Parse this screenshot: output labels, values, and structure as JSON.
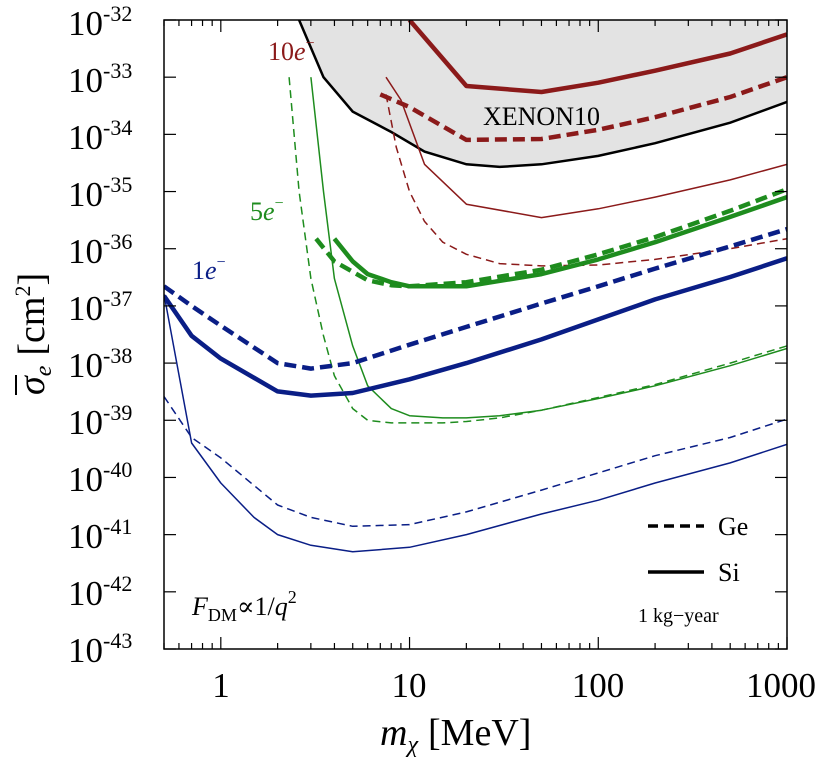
{
  "chart_data": {
    "type": "line",
    "x_scale": "log",
    "y_scale": "log",
    "xlim": [
      0.5,
      1000
    ],
    "ylim": [
      1e-43,
      1e-32
    ],
    "x_ticks": [
      "1",
      "10",
      "100",
      "1000"
    ],
    "y_ticks": [
      "-32",
      "-33",
      "-34",
      "-35",
      "-36",
      "-37",
      "-38",
      "-39",
      "-40",
      "-41",
      "-42",
      "-43"
    ],
    "y_tick_base": "10",
    "xlabel": "m",
    "xlabel_subscript": "χ",
    "xlabel_unit": "[MeV]",
    "ylabel": "σ",
    "ylabel_subscript": "e",
    "ylabel_unit": "[cm",
    "ylabel_unit_sup": "2",
    "ylabel_unit_close": "]",
    "grid": false,
    "colors": {
      "red": "#8b1a1a",
      "green": "#1e8c1e",
      "blue": "#0a1e86",
      "xenon_fill": "#e3e3e3",
      "xenon_line": "#000000"
    },
    "xenon_region": {
      "label": "XENON10",
      "x": [
        2.6,
        3.5,
        5,
        8,
        12,
        20,
        30,
        50,
        100,
        200,
        500,
        1000
      ],
      "y": [
        1e-32,
        1e-33,
        2.5e-34,
        1.1e-34,
        5e-35,
        3e-35,
        2.7e-35,
        3e-35,
        4.2e-35,
        7e-35,
        1.6e-34,
        3.7e-34
      ]
    },
    "series": [
      {
        "color": "red",
        "style": "solid",
        "width": "thick",
        "x": [
          10,
          20,
          50,
          100,
          200,
          500,
          1000
        ],
        "y": [
          1e-32,
          7e-34,
          5.5e-34,
          8e-34,
          1.3e-33,
          2.6e-33,
          5.6e-33
        ]
      },
      {
        "color": "red",
        "style": "dashed",
        "width": "thick",
        "x": [
          7,
          10,
          20,
          50,
          100,
          200,
          500,
          1000
        ],
        "y": [
          5e-34,
          3e-34,
          8e-35,
          8.3e-35,
          1.2e-34,
          2e-34,
          4.5e-34,
          1e-33
        ]
      },
      {
        "color": "red",
        "style": "solid",
        "width": "thin",
        "x": [
          7.5,
          9,
          12,
          20,
          50,
          100,
          200,
          500,
          1000
        ],
        "y": [
          1e-33,
          4e-34,
          3e-35,
          6e-36,
          3.5e-36,
          5e-36,
          8e-36,
          1.6e-35,
          3e-35
        ]
      },
      {
        "color": "red",
        "style": "dashed",
        "width": "thin",
        "x": [
          7.5,
          8.5,
          10,
          12,
          15,
          20,
          30,
          50,
          100,
          200,
          500,
          1000
        ],
        "y": [
          5e-34,
          6e-35,
          1e-35,
          3e-36,
          1.3e-36,
          8e-37,
          5.5e-37,
          5e-37,
          5.2e-37,
          6.5e-37,
          1e-36,
          1.5e-36
        ]
      },
      {
        "color": "green",
        "style": "solid",
        "width": "thick",
        "x": [
          4,
          5,
          6,
          8,
          10,
          20,
          50,
          100,
          200,
          500,
          1000
        ],
        "y": [
          1.5e-36,
          6e-37,
          3.6e-37,
          2.6e-37,
          2.2e-37,
          2.2e-37,
          3.6e-37,
          6.5e-37,
          1.3e-36,
          3.6e-36,
          8e-36
        ]
      },
      {
        "color": "green",
        "style": "dashed",
        "width": "thick",
        "x": [
          3.2,
          4,
          6,
          8,
          10,
          20,
          50,
          100,
          200,
          500,
          1000
        ],
        "y": [
          1.5e-36,
          6e-37,
          2.8e-37,
          2.3e-37,
          2.2e-37,
          2.6e-37,
          4.3e-37,
          8e-37,
          1.6e-36,
          4.6e-36,
          1.1e-35
        ]
      },
      {
        "color": "green",
        "style": "solid",
        "width": "thin",
        "x": [
          3,
          3.5,
          4,
          5,
          6,
          8,
          10,
          15,
          20,
          30,
          50,
          100,
          200,
          500,
          1000
        ],
        "y": [
          1e-33,
          1e-35,
          3e-37,
          2e-38,
          4e-39,
          1.6e-39,
          1.2e-39,
          1.1e-39,
          1.1e-39,
          1.2e-39,
          1.5e-39,
          2.4e-39,
          4e-39,
          9e-39,
          1.8e-38
        ]
      },
      {
        "color": "green",
        "style": "dashed",
        "width": "thin",
        "x": [
          2.3,
          2.6,
          3,
          3.5,
          4,
          5,
          6,
          8,
          10,
          15,
          20,
          30,
          50,
          100,
          200,
          500,
          1000
        ],
        "y": [
          1e-33,
          1e-35,
          3e-37,
          3e-38,
          6e-39,
          1.6e-39,
          1e-39,
          9e-40,
          9e-40,
          9e-40,
          9.5e-40,
          1.1e-39,
          1.5e-39,
          2.5e-39,
          4.2e-39,
          1e-38,
          2e-38
        ]
      },
      {
        "color": "blue",
        "style": "solid",
        "width": "thick",
        "x": [
          0.5,
          0.7,
          1,
          2,
          3,
          5,
          10,
          20,
          50,
          100,
          200,
          500,
          1000
        ],
        "y": [
          1.5e-37,
          3e-38,
          1.2e-38,
          3.2e-39,
          2.7e-39,
          3e-39,
          5.2e-39,
          1e-38,
          2.6e-38,
          5.8e-38,
          1.3e-37,
          3.2e-37,
          6.8e-37
        ]
      },
      {
        "color": "blue",
        "style": "dashed",
        "width": "thick",
        "x": [
          0.5,
          0.7,
          1,
          2,
          3,
          5,
          10,
          20,
          50,
          100,
          200,
          500,
          1000
        ],
        "y": [
          2.2e-37,
          1e-37,
          4.5e-38,
          1e-38,
          8e-39,
          1e-38,
          2.1e-38,
          4.3e-38,
          1.1e-37,
          2.2e-37,
          4.5e-37,
          1.1e-36,
          2.2e-36
        ]
      },
      {
        "color": "blue",
        "style": "solid",
        "width": "thin",
        "x": [
          0.5,
          0.7,
          1,
          1.5,
          2,
          3,
          5,
          10,
          20,
          50,
          100,
          200,
          500,
          1000
        ],
        "y": [
          1.6e-37,
          4e-40,
          8e-41,
          2e-41,
          1e-41,
          6.5e-42,
          5e-42,
          6e-42,
          1e-41,
          2.3e-41,
          4e-41,
          8e-41,
          1.8e-40,
          3.8e-40
        ]
      },
      {
        "color": "blue",
        "style": "dashed",
        "width": "thin",
        "x": [
          0.5,
          0.7,
          1,
          2,
          3,
          5,
          10,
          20,
          50,
          100,
          200,
          500,
          1000
        ],
        "y": [
          2.6e-39,
          5e-40,
          2.2e-40,
          3.3e-41,
          2e-41,
          1.4e-41,
          1.5e-41,
          2.5e-41,
          6e-41,
          1.2e-40,
          2.4e-40,
          5e-40,
          1.05e-39
        ]
      }
    ],
    "annotations": {
      "red_label_num": "10",
      "green_label_num": "5",
      "blue_label_num": "1",
      "electron": "e",
      "minus": "−",
      "formula_F": "F",
      "formula_sub": "DM",
      "formula_rest": "∝1/",
      "formula_q": "q",
      "formula_exp": "2",
      "exposure": "1 kg−year"
    },
    "legend": [
      {
        "style": "dashed",
        "label": "Ge"
      },
      {
        "style": "solid",
        "label": "Si"
      }
    ]
  }
}
